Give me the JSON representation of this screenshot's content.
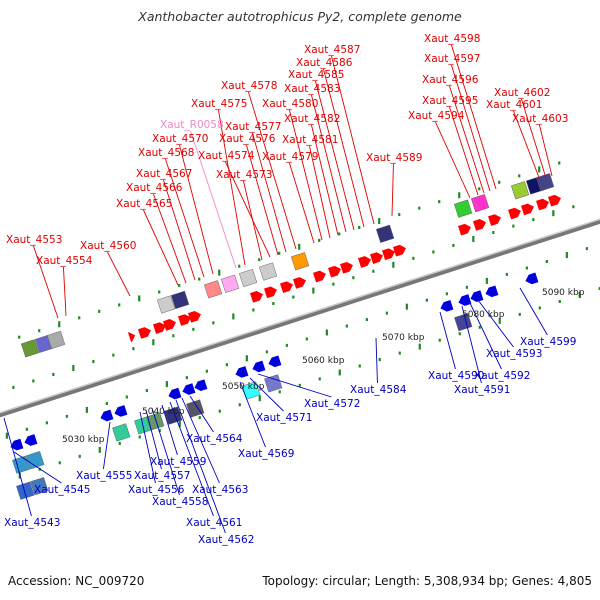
{
  "title": "Xanthobacter autotrophicus Py2, complete genome",
  "footer": {
    "accession": "Accession: NC_009720",
    "summary": "Topology: circular; Length: 5,308,934 bp; Genes: 4,805"
  },
  "colors": {
    "forward_label": "#e00000",
    "reverse_label": "#0000c0",
    "rna_label": "#ee88cc",
    "backbone": "#888888",
    "ticks": "#228822"
  },
  "scale_labels": [
    "5030 kbp",
    "5040 kbp",
    "5050 kbp",
    "5060 kbp",
    "5070 kbp",
    "5080 kbp",
    "5090 kbp"
  ],
  "forward_genes": [
    "Xaut_4553",
    "Xaut_4554",
    "Xaut_4560",
    "Xaut_4565",
    "Xaut_4566",
    "Xaut_4567",
    "Xaut_4568",
    "Xaut_4570",
    "Xaut_4573",
    "Xaut_4574",
    "Xaut_4575",
    "Xaut_4576",
    "Xaut_4577",
    "Xaut_4578",
    "Xaut_4579",
    "Xaut_4580",
    "Xaut_4581",
    "Xaut_4582",
    "Xaut_4583",
    "Xaut_4585",
    "Xaut_4586",
    "Xaut_4587",
    "Xaut_4589",
    "Xaut_4594",
    "Xaut_4595",
    "Xaut_4596",
    "Xaut_4597",
    "Xaut_4598",
    "Xaut_4601",
    "Xaut_4602",
    "Xaut_4603"
  ],
  "rna_genes": [
    "Xaut_R0058"
  ],
  "reverse_genes": [
    "Xaut_4543",
    "Xaut_4545",
    "Xaut_4555",
    "Xaut_4556",
    "Xaut_4557",
    "Xaut_4558",
    "Xaut_4559",
    "Xaut_4561",
    "Xaut_4562",
    "Xaut_4563",
    "Xaut_4564",
    "Xaut_4569",
    "Xaut_4571",
    "Xaut_4572",
    "Xaut_4584",
    "Xaut_4590",
    "Xaut_4591",
    "Xaut_4592",
    "Xaut_4593",
    "Xaut_4599"
  ]
}
